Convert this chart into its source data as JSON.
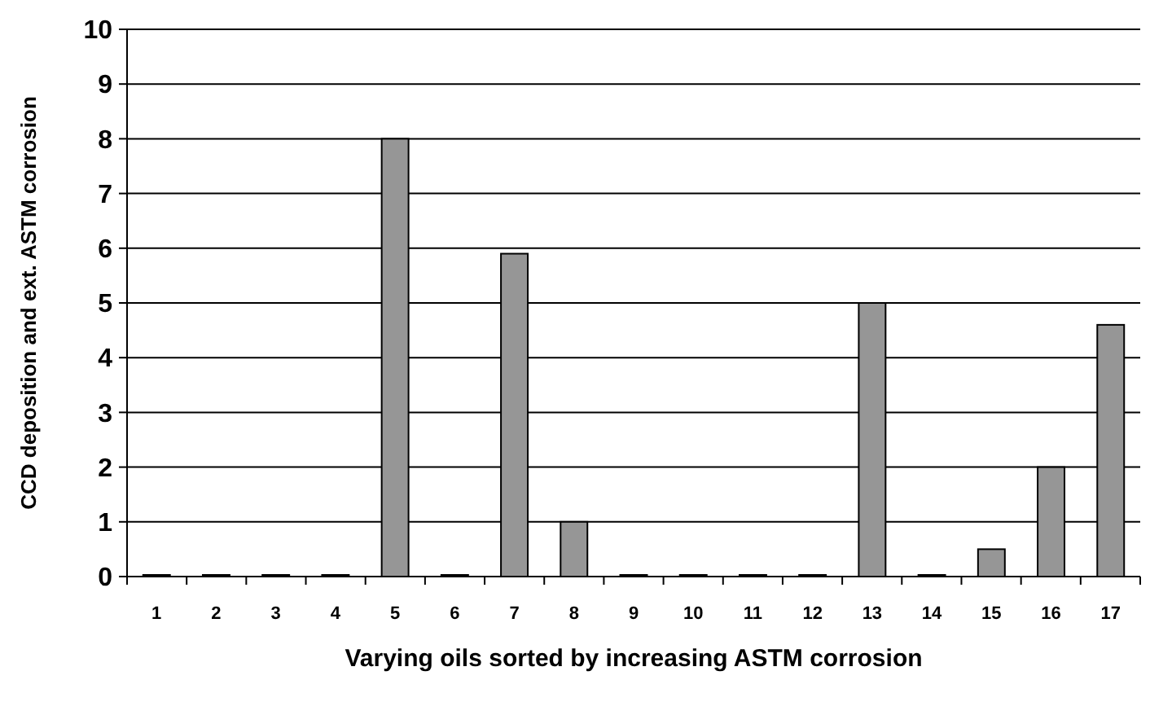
{
  "chart_data": {
    "type": "bar",
    "xlabel": "Varying oils sorted by increasing ASTM corrosion",
    "ylabel": "CCD deposition and ext. ASTM corrosion",
    "categories": [
      "1",
      "2",
      "3",
      "4",
      "5",
      "6",
      "7",
      "8",
      "9",
      "10",
      "11",
      "12",
      "13",
      "14",
      "15",
      "16",
      "17"
    ],
    "values": [
      0.03,
      0.03,
      0.03,
      0.03,
      8,
      0.03,
      5.9,
      1,
      0.03,
      0.03,
      0.03,
      0.03,
      5,
      0.03,
      0.5,
      2,
      4.6
    ],
    "color": "#969696",
    "ylim": [
      0,
      10
    ],
    "yticks": [
      0,
      1,
      2,
      3,
      4,
      5,
      6,
      7,
      8,
      9,
      10
    ],
    "grid": "y"
  }
}
